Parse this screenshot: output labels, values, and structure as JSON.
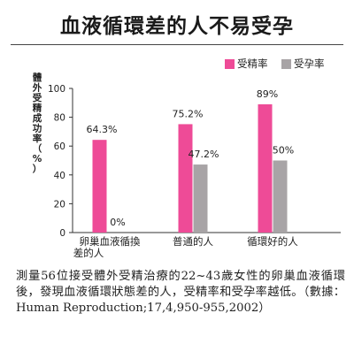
{
  "title": "血液循環差的人不易受孕",
  "note": "測量56位接受體外受精治療的22~43歲女性的卵巢血液循環後，發現血液循環狀態差的人，受精率和受孕率越低。（數據：Human Reproduction;17,4,950-955,2002）",
  "colors": {
    "fertilization": "#ee4b97",
    "pregnancy": "#a8a4a6"
  },
  "chart_data": {
    "type": "bar",
    "ylabel": "體外受精成功率（%）",
    "ylim": [
      0,
      100
    ],
    "yticks": [
      "0",
      "20",
      "40",
      "60",
      "80",
      "100"
    ],
    "legend_position": "top-right",
    "categories": [
      "卵巢血液循換差的人",
      "普通的人",
      "循環好的人"
    ],
    "category_lines": [
      [
        "卵巢血液循換",
        "差的人"
      ],
      [
        "普通的人"
      ],
      [
        "循環好的人"
      ]
    ],
    "series": [
      {
        "name": "受精率",
        "values": [
          64.3,
          75.2,
          89
        ],
        "labels": [
          "64.3%",
          "75.2%",
          "89%"
        ]
      },
      {
        "name": "受孕率",
        "values": [
          0,
          47.2,
          50
        ],
        "labels": [
          "0%",
          "47.2%",
          "50%"
        ]
      }
    ]
  }
}
